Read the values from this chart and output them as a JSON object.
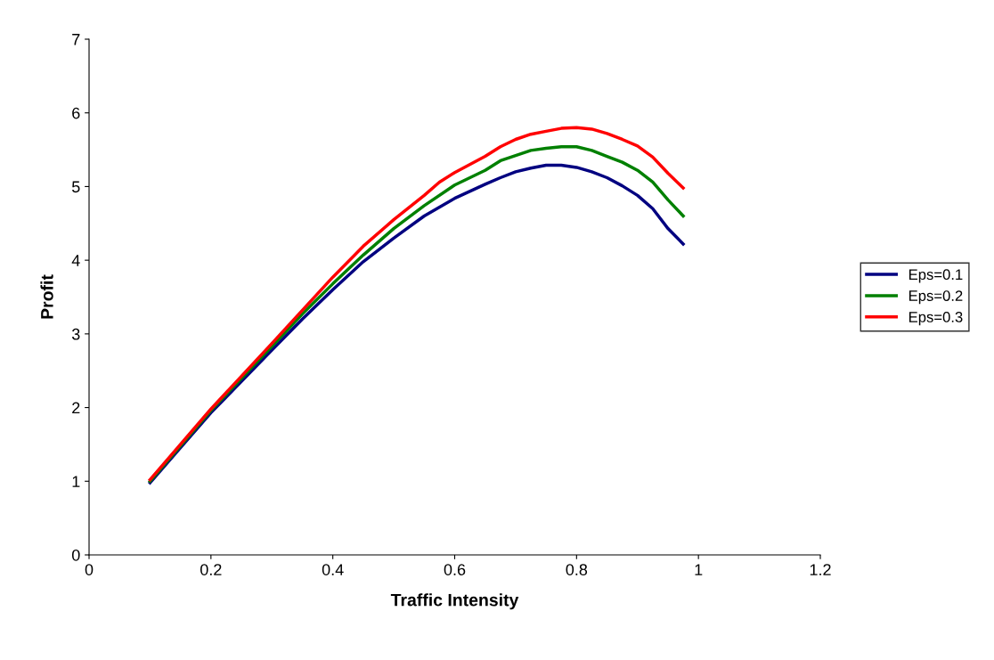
{
  "chart_data": {
    "type": "line",
    "xlabel": "Traffic Intensity",
    "ylabel": "Profit",
    "xlim": [
      0,
      1.2
    ],
    "xticks": [
      0,
      0.2,
      0.4,
      0.6,
      0.8,
      1,
      1.2
    ],
    "ylim": [
      0,
      7
    ],
    "yticks": [
      0,
      1,
      2,
      3,
      4,
      5,
      6,
      7
    ],
    "grid": false,
    "legend": "right",
    "marker": "none",
    "line_style": "solid",
    "series": [
      {
        "name": "Eps=0.1",
        "color": "#000080",
        "x": [
          0.1,
          0.2,
          0.3,
          0.35,
          0.4,
          0.45,
          0.5,
          0.55,
          0.6,
          0.65,
          0.675,
          0.7,
          0.725,
          0.75,
          0.775,
          0.8,
          0.825,
          0.85,
          0.875,
          0.9,
          0.925,
          0.95,
          0.975
        ],
        "values": [
          0.98,
          1.93,
          2.78,
          3.2,
          3.6,
          3.98,
          4.3,
          4.6,
          4.84,
          5.03,
          5.12,
          5.2,
          5.25,
          5.29,
          5.29,
          5.26,
          5.2,
          5.12,
          5.01,
          4.88,
          4.7,
          4.43,
          4.22
        ]
      },
      {
        "name": "Eps=0.2",
        "color": "#008000",
        "x": [
          0.1,
          0.2,
          0.3,
          0.35,
          0.4,
          0.45,
          0.5,
          0.55,
          0.6,
          0.65,
          0.675,
          0.7,
          0.725,
          0.75,
          0.775,
          0.8,
          0.825,
          0.85,
          0.875,
          0.9,
          0.925,
          0.95,
          0.975
        ],
        "values": [
          1.0,
          1.96,
          2.83,
          3.27,
          3.68,
          4.07,
          4.43,
          4.74,
          5.02,
          5.22,
          5.35,
          5.42,
          5.49,
          5.52,
          5.54,
          5.54,
          5.49,
          5.41,
          5.33,
          5.22,
          5.06,
          4.82,
          4.6
        ]
      },
      {
        "name": "Eps=0.3",
        "color": "#ff0000",
        "x": [
          0.1,
          0.2,
          0.3,
          0.35,
          0.4,
          0.45,
          0.5,
          0.55,
          0.575,
          0.6,
          0.65,
          0.675,
          0.7,
          0.725,
          0.75,
          0.775,
          0.8,
          0.825,
          0.85,
          0.875,
          0.9,
          0.925,
          0.95,
          0.975
        ],
        "values": [
          1.02,
          1.98,
          2.87,
          3.32,
          3.77,
          4.19,
          4.55,
          4.88,
          5.06,
          5.19,
          5.41,
          5.54,
          5.64,
          5.71,
          5.75,
          5.79,
          5.8,
          5.78,
          5.72,
          5.64,
          5.55,
          5.4,
          5.18,
          4.98
        ]
      }
    ]
  }
}
